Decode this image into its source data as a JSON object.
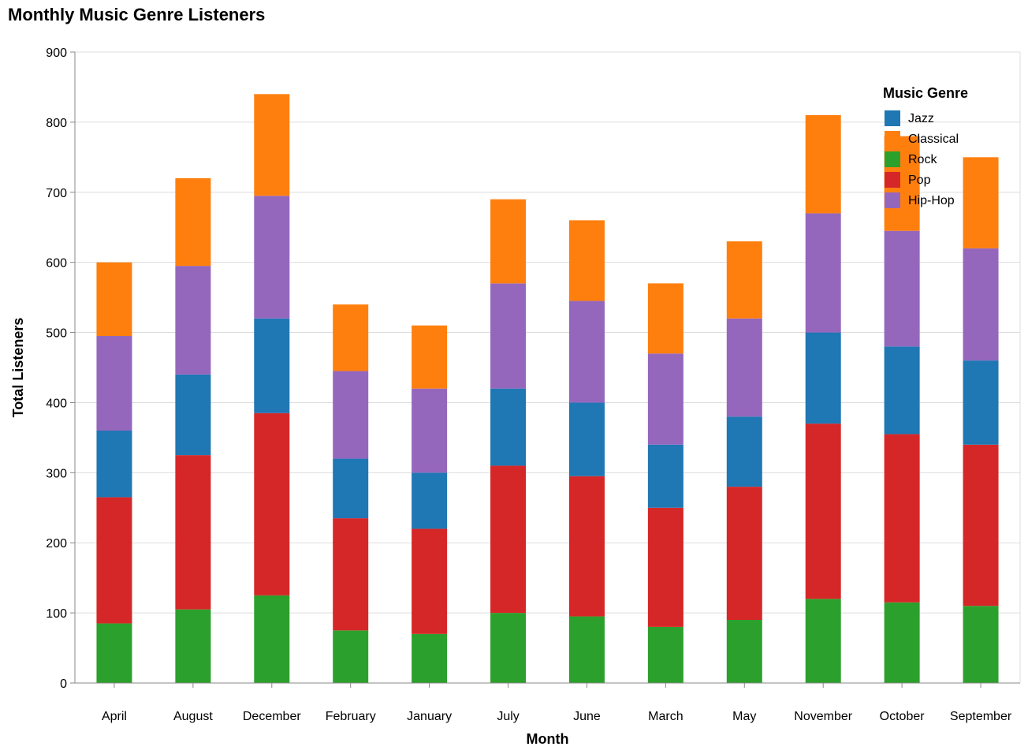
{
  "chart_data": {
    "type": "bar",
    "stacked": true,
    "title": "Monthly Music Genre Listeners",
    "xlabel": "Month",
    "ylabel": "Total Listeners",
    "ylim": [
      0,
      900
    ],
    "yticks": [
      0,
      100,
      200,
      300,
      400,
      500,
      600,
      700,
      800,
      900
    ],
    "grid": true,
    "legend_title": "Music Genre",
    "legend_position": "top-right",
    "categories": [
      "April",
      "August",
      "December",
      "February",
      "January",
      "July",
      "June",
      "March",
      "May",
      "November",
      "October",
      "September"
    ],
    "series": [
      {
        "name": "Rock",
        "color": "#2ca02c",
        "values": [
          85,
          105,
          125,
          75,
          70,
          100,
          95,
          80,
          90,
          120,
          115,
          110
        ]
      },
      {
        "name": "Pop",
        "color": "#d62728",
        "values": [
          180,
          220,
          260,
          160,
          150,
          210,
          200,
          170,
          190,
          250,
          240,
          230
        ]
      },
      {
        "name": "Jazz",
        "color": "#1f77b4",
        "values": [
          95,
          115,
          135,
          85,
          80,
          110,
          105,
          90,
          100,
          130,
          125,
          120
        ]
      },
      {
        "name": "Hip-Hop",
        "color": "#9467bd",
        "values": [
          135,
          155,
          175,
          125,
          120,
          150,
          145,
          130,
          140,
          170,
          165,
          160
        ]
      },
      {
        "name": "Classical",
        "color": "#ff7f0e",
        "values": [
          105,
          125,
          145,
          95,
          90,
          120,
          115,
          100,
          110,
          140,
          135,
          130
        ]
      }
    ],
    "legend_order": [
      "Jazz",
      "Classical",
      "Rock",
      "Pop",
      "Hip-Hop"
    ]
  }
}
